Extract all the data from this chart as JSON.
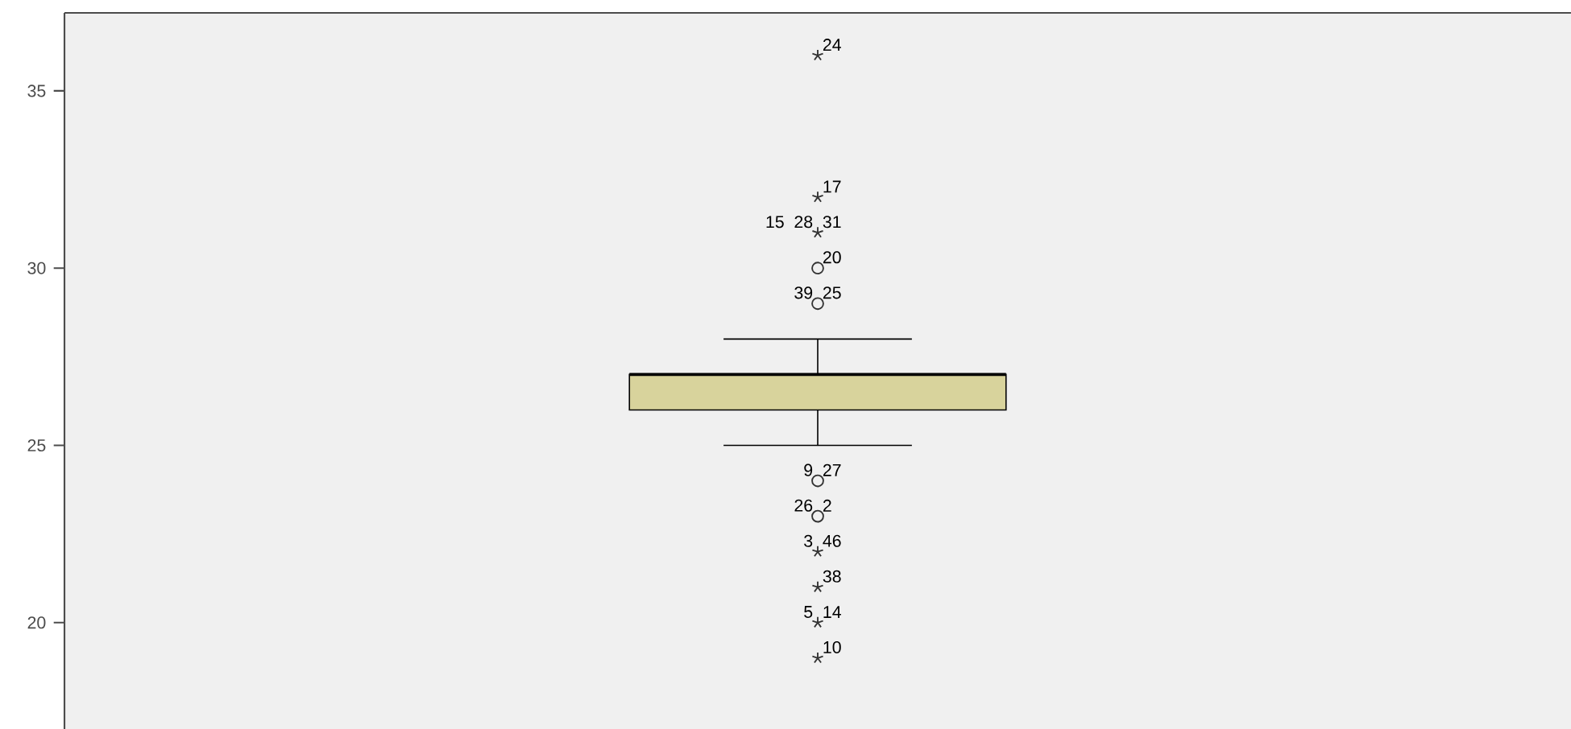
{
  "chart_data": {
    "type": "box",
    "categories": [
      null
    ],
    "color": "#d8d39c",
    "boxes": [
      {
        "low": 25,
        "q1": 26,
        "median": 27,
        "q3": 27,
        "high": 28,
        "outliers": [
          36,
          32,
          31,
          30,
          29,
          24,
          23,
          22,
          21,
          20,
          19
        ]
      }
    ],
    "ylim": [
      17,
      37.2
    ],
    "yticks": [
      20,
      25,
      30,
      35
    ],
    "tick_labels": "y",
    "annotations": [
      "24",
      "17",
      "15",
      "28",
      "31",
      "20",
      "39",
      "25",
      "9",
      "27",
      "26",
      "2",
      "3",
      "46",
      "38",
      "5",
      "14",
      "10"
    ]
  }
}
